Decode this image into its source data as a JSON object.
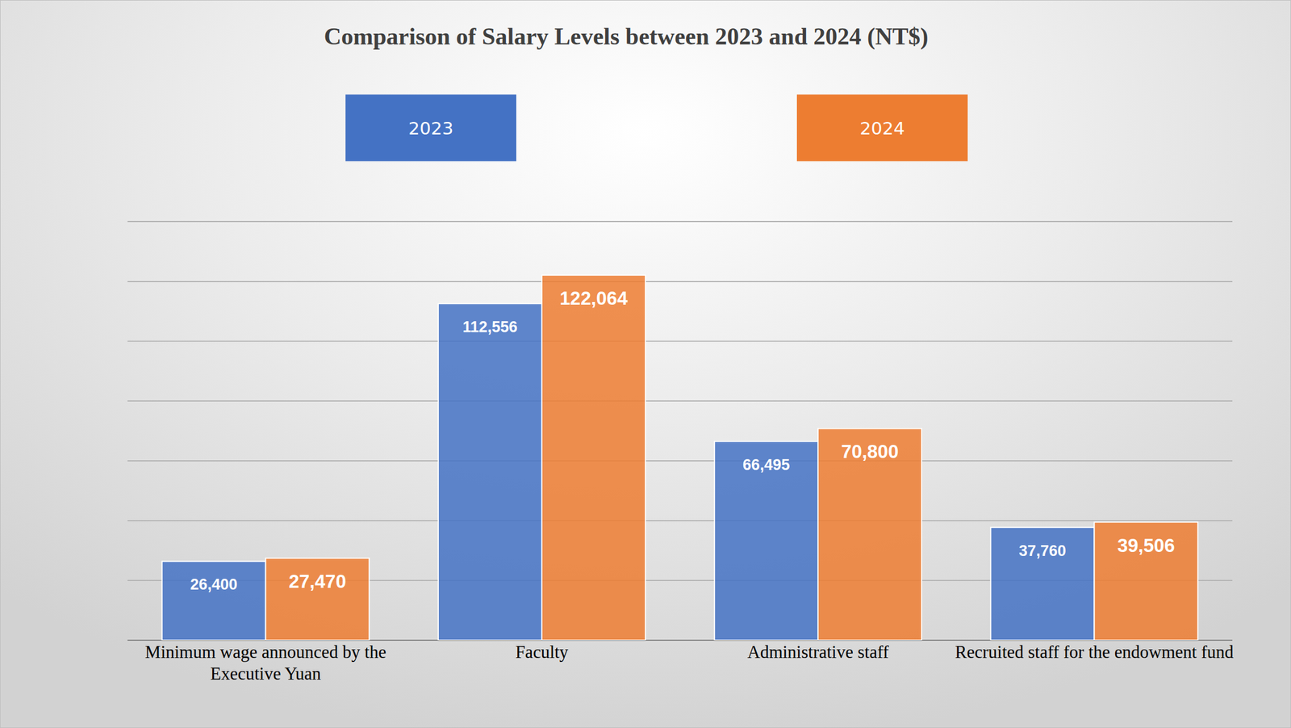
{
  "chart_data": {
    "type": "bar",
    "title": "Comparison of Salary Levels between 2023 and 2024 (NT$)",
    "categories": [
      "Minimum wage announced by the Executive Yuan",
      "Faculty",
      "Administrative staff",
      "Recruited staff for the endowment fund"
    ],
    "series": [
      {
        "name": "2023",
        "color": "#4472c4",
        "values": [
          26400,
          112556,
          66495,
          37760
        ],
        "value_labels": [
          "26,400",
          "112,556",
          "66,495",
          "37,760"
        ]
      },
      {
        "name": "2024",
        "color": "#ed7d31",
        "values": [
          27470,
          122064,
          70800,
          39506
        ],
        "value_labels": [
          "27,470",
          "122,064",
          "70,800",
          "39,506"
        ]
      }
    ],
    "ylim": [
      0,
      140000
    ],
    "yticks": [
      0,
      20000,
      40000,
      60000,
      80000,
      100000,
      120000,
      140000
    ],
    "grid": true,
    "legend": "top",
    "data_labels": true,
    "tick_labels": "x"
  }
}
